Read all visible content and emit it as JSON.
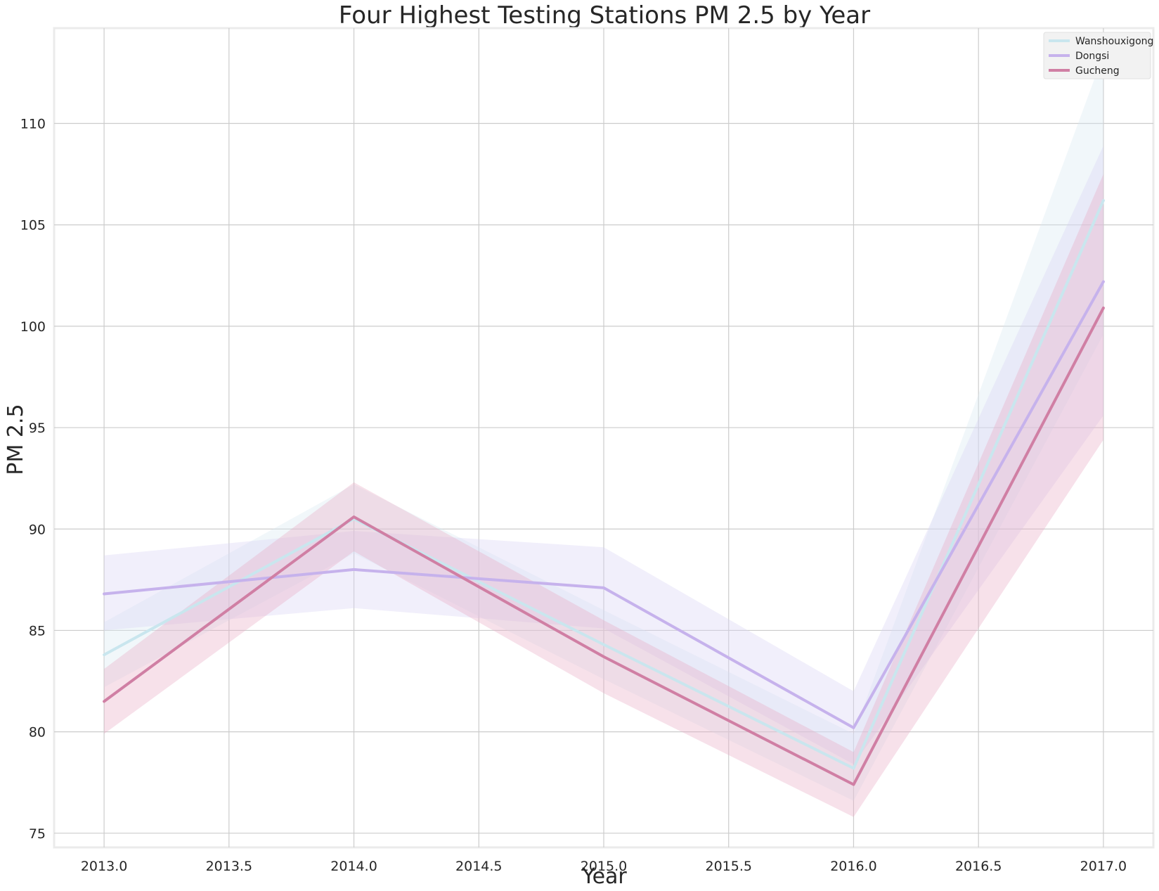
{
  "chart_data": {
    "type": "line",
    "title": "Four Highest Testing Stations PM 2.5 by Year",
    "xlabel": "Year",
    "ylabel": "PM 2.5",
    "xlim": [
      2012.8,
      2017.2
    ],
    "ylim": [
      74.3,
      114.7
    ],
    "xticks": [
      2013.0,
      2013.5,
      2014.0,
      2014.5,
      2015.0,
      2015.5,
      2016.0,
      2016.5,
      2017.0
    ],
    "xtick_labels": [
      "2013.0",
      "2013.5",
      "2014.0",
      "2014.5",
      "2015.0",
      "2015.5",
      "2016.0",
      "2016.5",
      "2017.0"
    ],
    "yticks": [
      75,
      80,
      85,
      90,
      95,
      100,
      105,
      110
    ],
    "ytick_labels": [
      "75",
      "80",
      "85",
      "90",
      "95",
      "100",
      "105",
      "110"
    ],
    "grid": true,
    "legend_position": "top-right",
    "x": [
      2013,
      2014,
      2015,
      2016,
      2017
    ],
    "series": [
      {
        "name": "Wanshouxigong",
        "color": "#c9e6ee",
        "band_color": "#d8e8f2",
        "values": [
          83.8,
          90.5,
          84.3,
          78.2,
          106.2
        ],
        "ci_lower": [
          82.2,
          88.8,
          82.6,
          76.6,
          99.6
        ],
        "ci_upper": [
          85.4,
          92.2,
          86.0,
          79.9,
          113.4
        ]
      },
      {
        "name": "Dongsi",
        "color": "#c6b2ec",
        "band_color": "#d8d0f4",
        "values": [
          86.8,
          88.0,
          87.1,
          80.2,
          102.2
        ],
        "ci_lower": [
          85.0,
          86.1,
          85.1,
          78.4,
          95.6
        ],
        "ci_upper": [
          88.7,
          89.9,
          89.1,
          82.0,
          108.9
        ]
      },
      {
        "name": "Gucheng",
        "color": "#d07fa4",
        "band_color": "#e8a8c4",
        "values": [
          81.5,
          90.6,
          83.7,
          77.4,
          100.9
        ],
        "ci_lower": [
          79.9,
          88.9,
          81.9,
          75.8,
          94.4
        ],
        "ci_upper": [
          83.1,
          92.3,
          85.5,
          79.0,
          107.5
        ]
      }
    ]
  }
}
